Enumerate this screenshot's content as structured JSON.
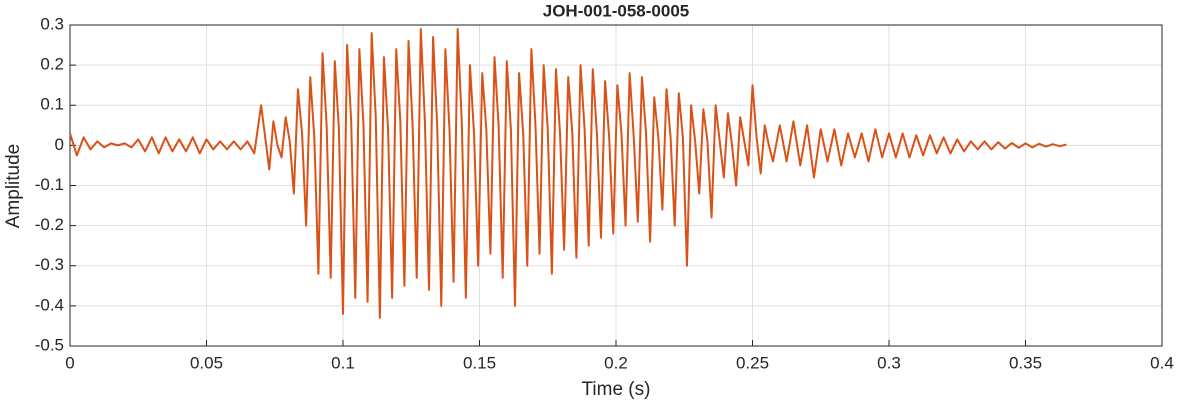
{
  "chart_data": {
    "type": "line",
    "title": "JOH-001-058-0005",
    "xlabel": "Time (s)",
    "ylabel": "Amplitude",
    "color": "#d95319",
    "grid": true,
    "xlim": [
      0,
      0.4
    ],
    "ylim": [
      -0.5,
      0.3
    ],
    "xticks": [
      0,
      0.05,
      0.1,
      0.15,
      0.2,
      0.25,
      0.3,
      0.35,
      0.4
    ],
    "yticks": [
      -0.5,
      -0.4,
      -0.3,
      -0.2,
      -0.1,
      0,
      0.1,
      0.2,
      0.3
    ],
    "x": [
      0,
      0.0025,
      0.005,
      0.0075,
      0.01,
      0.0125,
      0.015,
      0.0175,
      0.02,
      0.0225,
      0.025,
      0.0275,
      0.03,
      0.0325,
      0.035,
      0.0375,
      0.04,
      0.0425,
      0.045,
      0.0475,
      0.05,
      0.0525,
      0.055,
      0.0575,
      0.06,
      0.0625,
      0.065,
      0.0675,
      0.07,
      0.0715,
      0.073,
      0.0745,
      0.076,
      0.0775,
      0.079,
      0.0805,
      0.082,
      0.0835,
      0.085,
      0.0865,
      0.088,
      0.0895,
      0.091,
      0.0925,
      0.094,
      0.0955,
      0.097,
      0.0985,
      0.1,
      0.1015,
      0.103,
      0.1045,
      0.106,
      0.1075,
      0.109,
      0.1105,
      0.112,
      0.1135,
      0.115,
      0.1165,
      0.118,
      0.1195,
      0.121,
      0.1225,
      0.124,
      0.1255,
      0.127,
      0.1285,
      0.13,
      0.1315,
      0.133,
      0.1345,
      0.136,
      0.1375,
      0.139,
      0.1405,
      0.142,
      0.1435,
      0.145,
      0.1465,
      0.148,
      0.1495,
      0.151,
      0.1525,
      0.154,
      0.1555,
      0.157,
      0.1585,
      0.16,
      0.1615,
      0.163,
      0.1645,
      0.166,
      0.1675,
      0.169,
      0.1705,
      0.172,
      0.1735,
      0.175,
      0.1765,
      0.178,
      0.1795,
      0.181,
      0.1825,
      0.184,
      0.1855,
      0.187,
      0.1885,
      0.19,
      0.1915,
      0.193,
      0.1945,
      0.196,
      0.1975,
      0.199,
      0.2005,
      0.202,
      0.2035,
      0.205,
      0.2065,
      0.208,
      0.2095,
      0.211,
      0.2125,
      0.214,
      0.2155,
      0.217,
      0.2185,
      0.22,
      0.2215,
      0.223,
      0.2245,
      0.226,
      0.2275,
      0.229,
      0.2305,
      0.232,
      0.2335,
      0.235,
      0.2365,
      0.238,
      0.2395,
      0.241,
      0.2425,
      0.244,
      0.2455,
      0.247,
      0.2485,
      0.25,
      0.2515,
      0.253,
      0.2545,
      0.256,
      0.2575,
      0.26,
      0.2625,
      0.265,
      0.2675,
      0.27,
      0.2725,
      0.275,
      0.2775,
      0.28,
      0.2825,
      0.285,
      0.2875,
      0.29,
      0.2925,
      0.295,
      0.2975,
      0.3,
      0.3025,
      0.305,
      0.3075,
      0.31,
      0.3125,
      0.315,
      0.3175,
      0.32,
      0.3225,
      0.325,
      0.3275,
      0.33,
      0.3325,
      0.335,
      0.3375,
      0.34,
      0.3425,
      0.345,
      0.3475,
      0.35,
      0.3525,
      0.355,
      0.3575,
      0.36,
      0.3625,
      0.365
    ],
    "values": [
      0.03,
      -0.025,
      0.02,
      -0.01,
      0.01,
      -0.005,
      0.005,
      0,
      0.005,
      -0.005,
      0.015,
      -0.015,
      0.02,
      -0.02,
      0.02,
      -0.015,
      0.015,
      -0.015,
      0.02,
      -0.02,
      0.015,
      -0.01,
      0.01,
      -0.01,
      0.01,
      -0.01,
      0.01,
      -0.02,
      0.1,
      0.02,
      -0.06,
      0.06,
      0,
      -0.03,
      0.07,
      0.01,
      -0.12,
      0.14,
      0.03,
      -0.2,
      0.17,
      0.02,
      -0.32,
      0.23,
      0.05,
      -0.33,
      0.21,
      0.04,
      -0.42,
      0.25,
      0.06,
      -0.38,
      0.24,
      0.05,
      -0.39,
      0.28,
      0.07,
      -0.43,
      0.22,
      0.04,
      -0.38,
      0.24,
      0.06,
      -0.35,
      0.26,
      0.05,
      -0.33,
      0.29,
      0.06,
      -0.36,
      0.27,
      0.05,
      -0.4,
      0.24,
      0.04,
      -0.34,
      0.29,
      0.06,
      -0.38,
      0.2,
      0.03,
      -0.3,
      0.18,
      0.04,
      -0.27,
      0.22,
      0.05,
      -0.33,
      0.21,
      0.04,
      -0.4,
      0.18,
      0.03,
      -0.3,
      0.24,
      0.05,
      -0.27,
      0.2,
      0.04,
      -0.32,
      0.19,
      0.03,
      -0.26,
      0.17,
      0.03,
      -0.28,
      0.2,
      0.04,
      -0.25,
      0.19,
      0.03,
      -0.23,
      0.16,
      0.02,
      -0.22,
      0.15,
      0.03,
      -0.2,
      0.18,
      0.02,
      -0.19,
      0.17,
      0.03,
      -0.24,
      0.12,
      0.02,
      -0.16,
      0.14,
      0.02,
      -0.2,
      0.13,
      0.02,
      -0.3,
      0.1,
      0.01,
      -0.12,
      0.09,
      0.01,
      -0.18,
      0.1,
      0.01,
      -0.08,
      0.08,
      0,
      -0.1,
      0.07,
      0.01,
      -0.05,
      0.15,
      0.02,
      -0.07,
      0.05,
      0,
      -0.04,
      0.05,
      -0.04,
      0.06,
      -0.05,
      0.05,
      -0.08,
      0.04,
      -0.04,
      0.04,
      -0.05,
      0.03,
      -0.03,
      0.03,
      -0.04,
      0.04,
      -0.03,
      0.03,
      -0.03,
      0.03,
      -0.03,
      0.025,
      -0.025,
      0.025,
      -0.02,
      0.02,
      -0.02,
      0.015,
      -0.015,
      0.01,
      -0.01,
      0.01,
      -0.01,
      0.008,
      -0.008,
      0.006,
      -0.006,
      0.005,
      -0.005,
      0.004,
      -0.003,
      0.003,
      -0.002,
      0.002
    ]
  }
}
